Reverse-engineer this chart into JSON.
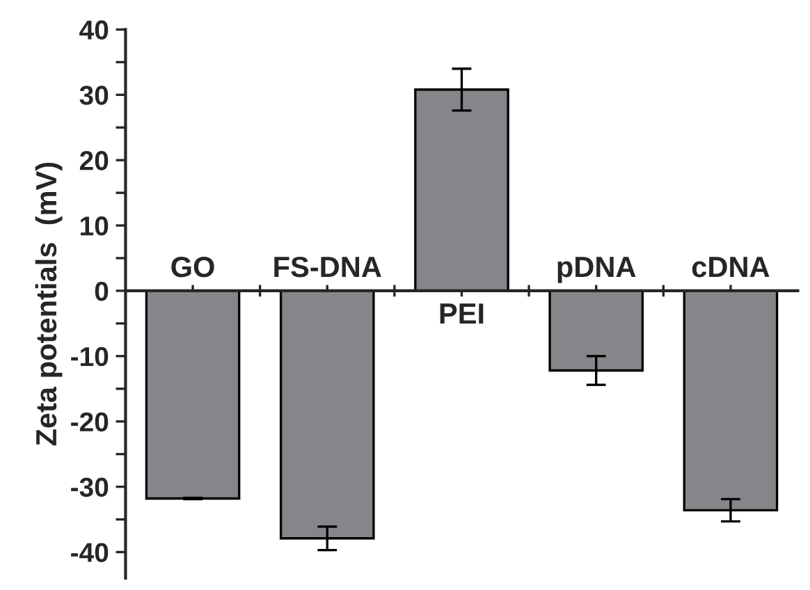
{
  "chart_data": {
    "type": "bar",
    "ylabel": "Zeta potentials  (mV)",
    "categories": [
      "GO",
      "FS-DNA",
      "PEI",
      "pDNA",
      "cDNA"
    ],
    "values": [
      -31.8,
      -37.9,
      30.8,
      -12.2,
      -33.6
    ],
    "errors": [
      0.1,
      1.8,
      3.2,
      2.2,
      1.7
    ],
    "color": "#858689",
    "ylim": [
      -44,
      40
    ],
    "yticks": [
      -40,
      {
        "value": -35,
        "label": null
      },
      -30,
      {
        "value": -25,
        "label": null
      },
      -20,
      {
        "value": -15,
        "label": null
      },
      -10,
      {
        "value": -5,
        "label": null
      },
      0,
      {
        "value": 5,
        "label": null
      },
      10,
      {
        "value": 15,
        "label": null
      },
      20,
      {
        "value": 25,
        "label": null
      },
      30,
      {
        "value": 35,
        "label": null
      },
      40
    ],
    "grid": false,
    "legend": false
  }
}
